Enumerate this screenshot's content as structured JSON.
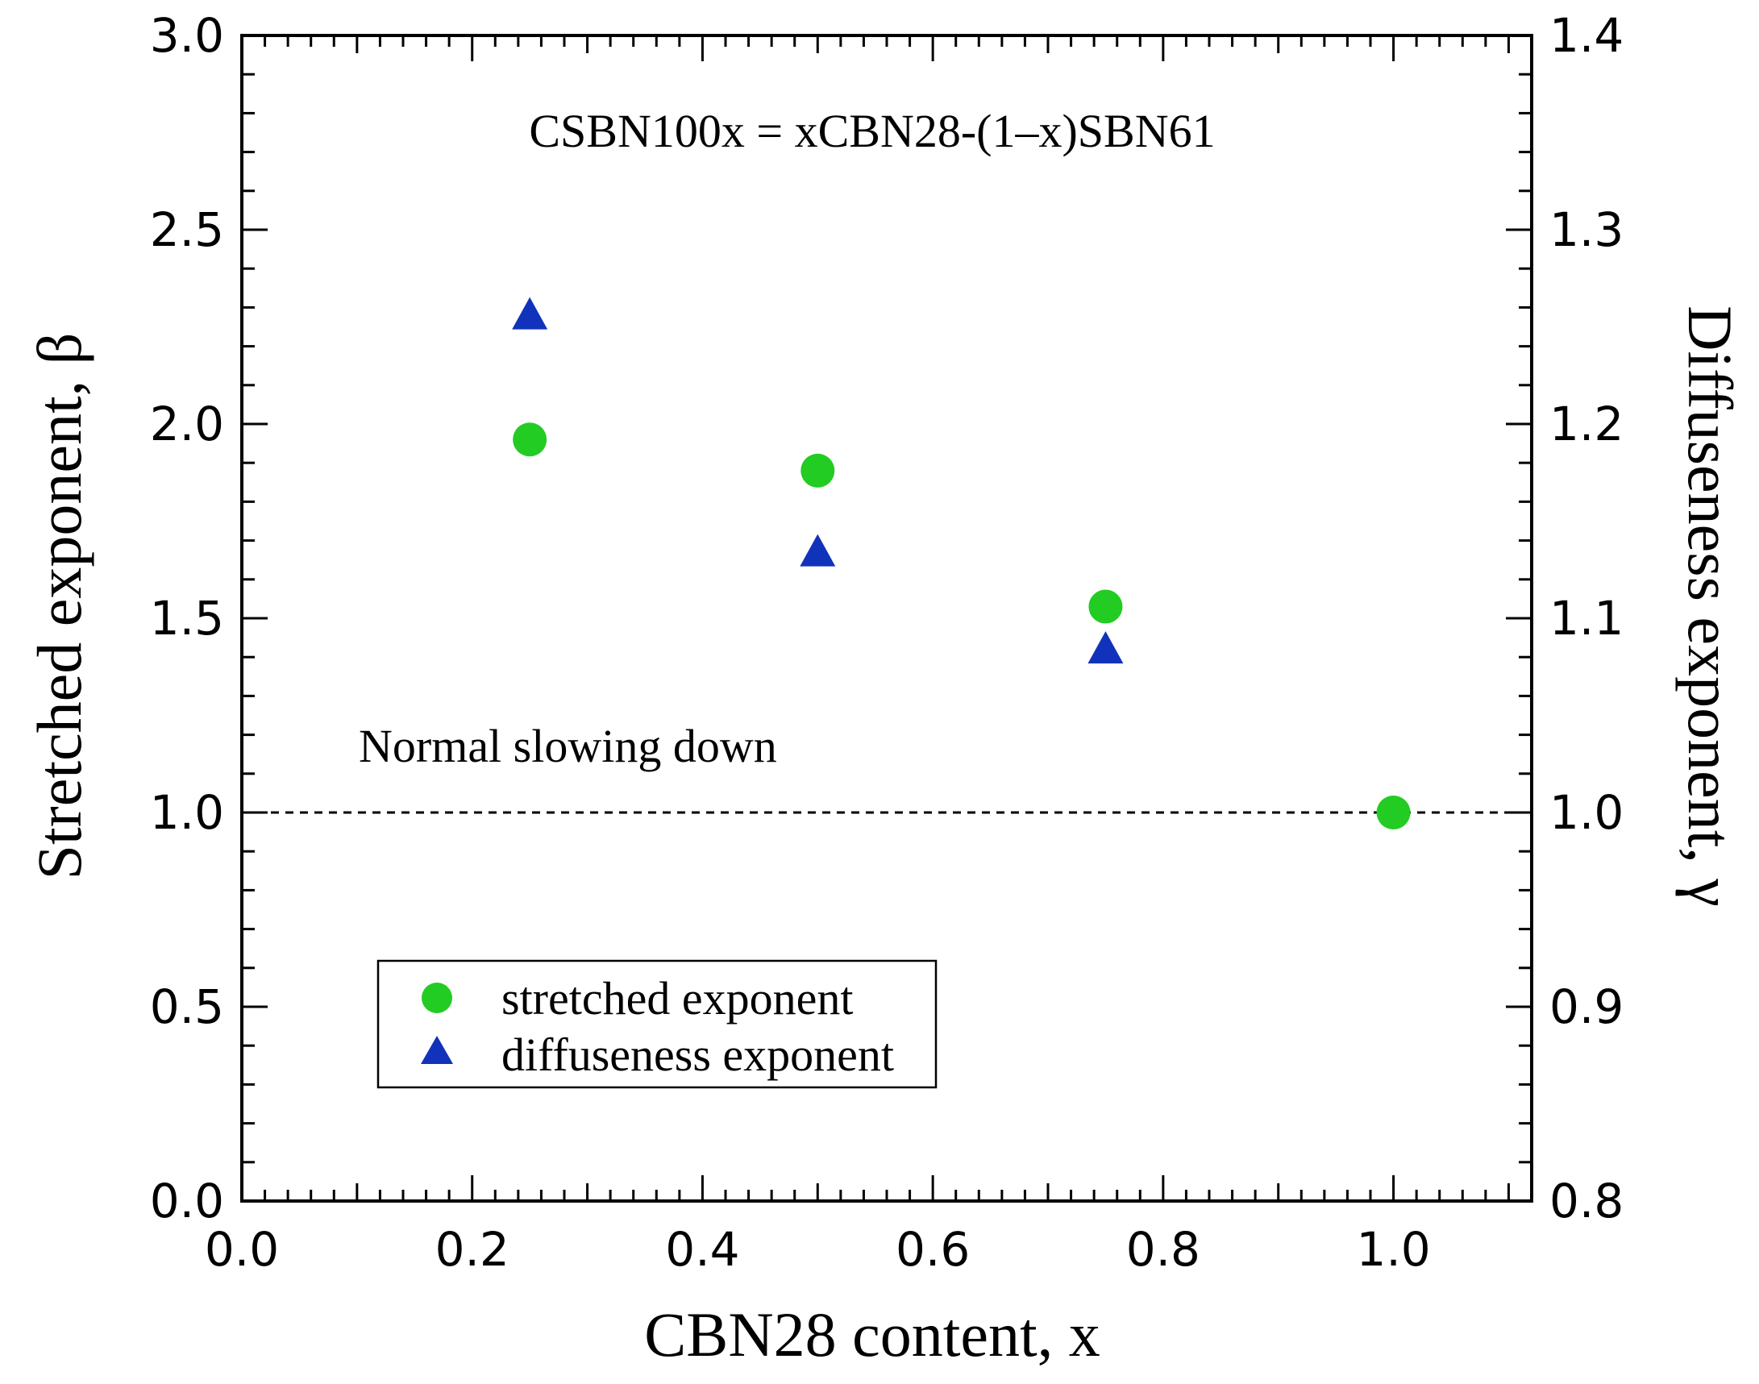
{
  "chart_data": {
    "type": "scatter",
    "x_label": "CBN28 content, x",
    "y_left_label": "Stretched exponent, β",
    "y_right_label": "Diffuseness exponent, γ",
    "annotation_formula": "CSBN100x = xCBN28-(1–x)SBN61",
    "annotation_reference": "Normal slowing down",
    "reference_line": {
      "y": 1.0,
      "style": "dotted"
    },
    "xlim": [
      0.0,
      1.12
    ],
    "ylim_left": [
      0.0,
      3.0
    ],
    "ylim_right": [
      0.8,
      1.4
    ],
    "x_ticks": [
      "0.0",
      "0.2",
      "0.4",
      "0.6",
      "0.8",
      "1.0"
    ],
    "y_left_ticks": [
      "0.0",
      "0.5",
      "1.0",
      "1.5",
      "2.0",
      "2.5",
      "3.0"
    ],
    "y_right_ticks": [
      "0.8",
      "0.9",
      "1.0",
      "1.1",
      "1.2",
      "1.3",
      "1.4"
    ],
    "series": [
      {
        "name": "stretched exponent",
        "axis": "left",
        "marker": "circle",
        "color": "#22cc22",
        "x": [
          0.25,
          0.5,
          0.75,
          1.0
        ],
        "y": [
          1.96,
          1.88,
          1.53,
          1.0
        ]
      },
      {
        "name": "diffuseness exponent",
        "axis": "right",
        "marker": "triangle",
        "color": "#1133bb",
        "x": [
          0.25,
          0.5,
          0.75
        ],
        "y": [
          1.255,
          1.133,
          1.083
        ]
      }
    ],
    "legend_position": "lower-left"
  }
}
